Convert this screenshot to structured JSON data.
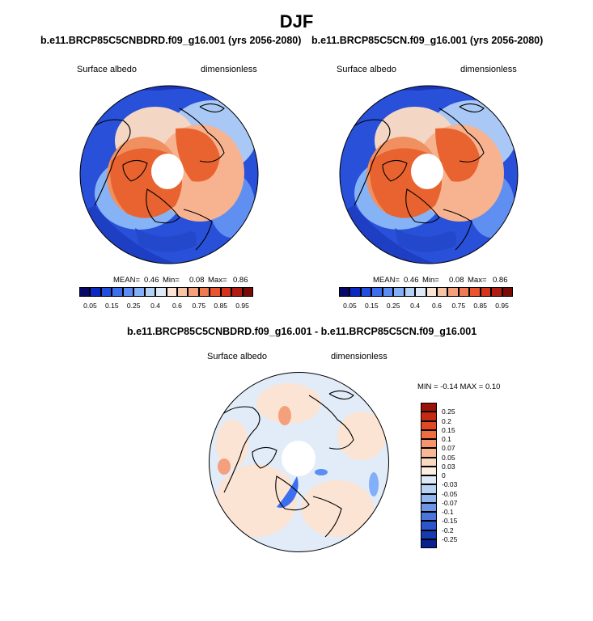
{
  "title": "DJF",
  "panel1": {
    "case_title": "b.e11.BRCP85C5CNBDRD.f09_g16.001 (yrs 2056-2080)",
    "variable": "Surface albedo",
    "units": "dimensionless",
    "stats": {
      "mean_label": "MEAN=",
      "mean": "0.46",
      "min_label": "Min=",
      "min": "0.08",
      "max_label": "Max=",
      "max": "0.86"
    }
  },
  "panel2": {
    "case_title": "b.e11.BRCP85C5CN.f09_g16.001 (yrs 2056-2080)",
    "variable": "Surface albedo",
    "units": "dimensionless",
    "stats": {
      "mean_label": "MEAN=",
      "mean": "0.46",
      "min_label": "Min=",
      "min": "0.08",
      "max_label": "Max=",
      "max": "0.86"
    }
  },
  "panel3": {
    "case_title": "b.e11.BRCP85C5CNBDRD.f09_g16.001 - b.e11.BRCP85C5CN.f09_g16.001",
    "variable": "Surface albedo",
    "units": "dimensionless",
    "minmax_text": "MIN =  -0.14 MAX =   0.10"
  },
  "colorbar_abs": {
    "colors": [
      "#08086b",
      "#0a2ac4",
      "#1f4ee0",
      "#3c6ff0",
      "#5a8df6",
      "#82aff8",
      "#b3d0f6",
      "#dfe9f6",
      "#fbe4d4",
      "#f8c4a6",
      "#f5a07c",
      "#f07a52",
      "#e85530",
      "#d6341a",
      "#b01c10",
      "#7a0a06"
    ],
    "labels": [
      "0.05",
      "0.15",
      "0.25",
      "0.4",
      "0.6",
      "0.75",
      "0.85",
      "0.95"
    ]
  },
  "colorbar_diff": {
    "colors": [
      "#9c1208",
      "#c72a14",
      "#e04a22",
      "#ee6e40",
      "#f59570",
      "#f8b896",
      "#fbd9c0",
      "#fdeee2",
      "#dbe9f8",
      "#b8d2f4",
      "#92b6ee",
      "#6d97e6",
      "#4a76dc",
      "#2b55cc",
      "#163ab4",
      "#0a2290"
    ],
    "labels": [
      "0.25",
      "0.2",
      "0.15",
      "0.1",
      "0.07",
      "0.05",
      "0.03",
      "0",
      "-0.03",
      "-0.05",
      "-0.07",
      "-0.1",
      "-0.15",
      "-0.2",
      "-0.25"
    ]
  }
}
